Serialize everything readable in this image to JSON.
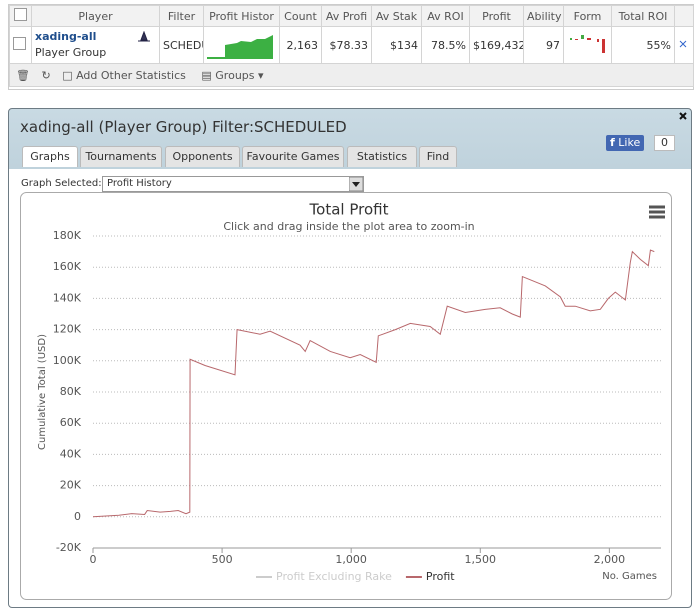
{
  "table": {
    "columns": [
      "Player",
      "Filter",
      "Profit Histor",
      "Count",
      "Av Profi",
      "Av Stak",
      "Av ROI",
      "Profit",
      "Ability",
      "Form",
      "Total ROI"
    ],
    "row": {
      "player": "xading-all",
      "group": "Player Group",
      "filter": "SCHEDU",
      "count": "2,163",
      "av_profit": "$78.33",
      "av_stake": "$134",
      "av_roi": "78.5%",
      "profit": "$169,432",
      "ability": "97",
      "total_roi": "55%"
    }
  },
  "toolbar": {
    "add": "Add Other Statistics",
    "groups": "Groups"
  },
  "panel": {
    "title": "xading-all (Player Group) Filter:SCHEDULED",
    "like": "Like",
    "like_count": "0",
    "tabs": [
      "Graphs",
      "Tournaments",
      "Opponents",
      "Favourite Games",
      "Statistics",
      "Find"
    ],
    "graph_label": "Graph Selected:",
    "graph_value": "Profit History"
  },
  "chart_data": {
    "type": "line",
    "title": "Total Profit",
    "subtitle": "Click and drag inside the plot area to zoom-in",
    "ylabel": "Cumulative Total (USD)",
    "xlabel": "No. Games",
    "xlim": [
      0,
      2200
    ],
    "xticks": [
      0,
      500,
      {
        "value": 1000,
        "label": "1,000"
      },
      {
        "value": 1500,
        "label": "1,500"
      },
      {
        "value": 2000,
        "label": "2,000"
      }
    ],
    "ylim": [
      -20000,
      180000
    ],
    "yticks": [
      {
        "value": -20000,
        "label": "-20K"
      },
      0,
      {
        "value": 20000,
        "label": "20K"
      },
      {
        "value": 40000,
        "label": "40K"
      },
      {
        "value": 60000,
        "label": "60K"
      },
      {
        "value": 80000,
        "label": "80K"
      },
      {
        "value": 100000,
        "label": "100K"
      },
      {
        "value": 120000,
        "label": "120K"
      },
      {
        "value": 140000,
        "label": "140K"
      },
      {
        "value": 160000,
        "label": "160K"
      },
      {
        "value": 180000,
        "label": "180K"
      }
    ],
    "grid": true,
    "x": [
      0,
      100,
      150,
      200,
      210,
      260,
      300,
      330,
      360,
      375,
      376,
      434,
      550,
      558,
      647,
      686,
      802,
      822,
      841,
      919,
      996,
      1035,
      1097,
      1105,
      1171,
      1229,
      1306,
      1345,
      1372,
      1442,
      1519,
      1577,
      1624,
      1655,
      1663,
      1752,
      1810,
      1829,
      1868,
      1926,
      1965,
      1996,
      2023,
      2062,
      2081,
      2089,
      2120,
      2151,
      2159,
      2174
    ],
    "series": [
      {
        "name": "Profit Excluding Rake",
        "color": "#cccccc",
        "visible": false
      },
      {
        "name": "Profit",
        "color": "#b8686c",
        "visible": true,
        "values": [
          0,
          1000,
          2000,
          1500,
          4000,
          3000,
          3500,
          4000,
          2000,
          3000,
          101000,
          97000,
          91000,
          120000,
          117000,
          119000,
          110000,
          106000,
          113000,
          106000,
          102000,
          104000,
          99000,
          116000,
          120000,
          124000,
          122000,
          117000,
          135000,
          131000,
          133000,
          134000,
          130000,
          128000,
          154000,
          148000,
          141000,
          135000,
          135000,
          132000,
          133000,
          140000,
          144000,
          139000,
          163000,
          170000,
          165000,
          161000,
          171000,
          170000
        ]
      }
    ]
  }
}
